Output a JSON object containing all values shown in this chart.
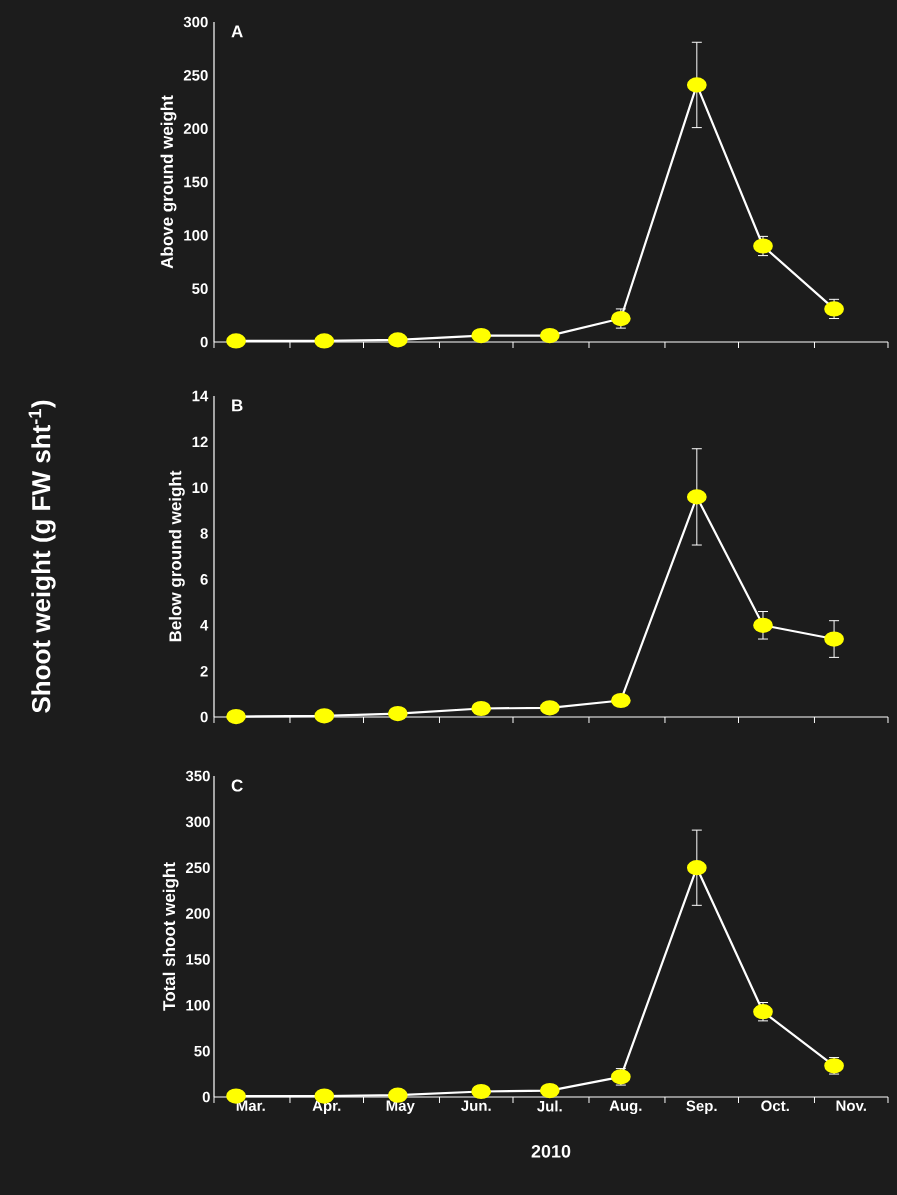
{
  "chart_data": [
    {
      "type": "line",
      "ylabel": "Above ground weight",
      "annotations": [
        "A"
      ],
      "x": [
        "2010-03-10",
        "2010-04-15",
        "2010-05-15",
        "2010-06-18",
        "2010-07-16",
        "2010-08-14",
        "2010-09-14",
        "2010-10-11",
        "2010-11-09"
      ],
      "series": [
        {
          "color": "#ffff00",
          "values": [
            1,
            1,
            2,
            6,
            6,
            22,
            241,
            90,
            31
          ],
          "errors": [
            null,
            null,
            null,
            null,
            null,
            9,
            40,
            9,
            9
          ]
        }
      ],
      "xlim": [
        "2010-03-01",
        "2010-12-01"
      ],
      "xticks": [
        {
          "value": "2010-03-01",
          "label": null
        },
        {
          "value": "2010-04-01",
          "label": null
        },
        {
          "value": "2010-05-01",
          "label": null
        },
        {
          "value": "2010-06-01",
          "label": null
        },
        {
          "value": "2010-07-01",
          "label": null
        },
        {
          "value": "2010-08-01",
          "label": null
        },
        {
          "value": "2010-09-01",
          "label": null
        },
        {
          "value": "2010-10-01",
          "label": null
        },
        {
          "value": "2010-11-01",
          "label": null
        },
        {
          "value": "2010-12-01",
          "label": null
        }
      ],
      "ylim": [
        0,
        300
      ],
      "yticks": [
        0,
        50,
        100,
        150,
        200,
        250,
        300
      ],
      "tick_labels": "y",
      "marker": "circle",
      "grid": false
    },
    {
      "type": "line",
      "ylabel": "Below ground weight",
      "annotations": [
        "B",
        "Shoot weight (g FW sht$^{-1}$)"
      ],
      "x": [
        "2010-03-10",
        "2010-04-15",
        "2010-05-15",
        "2010-06-18",
        "2010-07-16",
        "2010-08-14",
        "2010-09-14",
        "2010-10-11",
        "2010-11-09"
      ],
      "series": [
        {
          "color": "#ffff00",
          "values": [
            0.02,
            0.05,
            0.15,
            0.37,
            0.4,
            0.72,
            9.6,
            4.0,
            3.4
          ],
          "errors": [
            null,
            null,
            null,
            null,
            null,
            null,
            2.1,
            0.6,
            0.8
          ]
        }
      ],
      "xlim": [
        "2010-03-01",
        "2010-12-01"
      ],
      "xticks": [
        {
          "value": "2010-03-01",
          "label": null
        },
        {
          "value": "2010-04-01",
          "label": null
        },
        {
          "value": "2010-05-01",
          "label": null
        },
        {
          "value": "2010-06-01",
          "label": null
        },
        {
          "value": "2010-07-01",
          "label": null
        },
        {
          "value": "2010-08-01",
          "label": null
        },
        {
          "value": "2010-09-01",
          "label": null
        },
        {
          "value": "2010-10-01",
          "label": null
        },
        {
          "value": "2010-11-01",
          "label": null
        },
        {
          "value": "2010-12-01",
          "label": null
        }
      ],
      "ylim": [
        0,
        14
      ],
      "yticks": [
        0,
        2,
        4,
        6,
        8,
        10,
        12,
        14
      ],
      "tick_labels": "y",
      "marker": "circle",
      "grid": false
    },
    {
      "type": "line",
      "ylabel": "Total shoot weight",
      "xlabel": "2010",
      "annotations": [
        "C"
      ],
      "x": [
        "2010-03-10",
        "2010-04-15",
        "2010-05-15",
        "2010-06-18",
        "2010-07-16",
        "2010-08-14",
        "2010-09-14",
        "2010-10-11",
        "2010-11-09"
      ],
      "series": [
        {
          "color": "#ffff00",
          "values": [
            1,
            1,
            2,
            6,
            7,
            22,
            250,
            93,
            34
          ],
          "errors": [
            null,
            null,
            null,
            null,
            null,
            9,
            41,
            10,
            9
          ]
        }
      ],
      "xlim": [
        "2010-03-01",
        "2010-12-01"
      ],
      "xticks": [
        {
          "value": "2010-03-01",
          "label": null
        },
        {
          "value": "2010-03-16",
          "label": "Mar."
        },
        {
          "value": "2010-04-01",
          "label": null
        },
        {
          "value": "2010-04-16",
          "label": "Apr."
        },
        {
          "value": "2010-05-01",
          "label": null
        },
        {
          "value": "2010-05-16",
          "label": "May"
        },
        {
          "value": "2010-06-01",
          "label": null
        },
        {
          "value": "2010-06-16",
          "label": "Jun."
        },
        {
          "value": "2010-07-01",
          "label": null
        },
        {
          "value": "2010-07-16",
          "label": "Jul."
        },
        {
          "value": "2010-08-01",
          "label": null
        },
        {
          "value": "2010-08-16",
          "label": "Aug."
        },
        {
          "value": "2010-09-01",
          "label": null
        },
        {
          "value": "2010-09-16",
          "label": "Sep."
        },
        {
          "value": "2010-10-01",
          "label": null
        },
        {
          "value": "2010-10-16",
          "label": "Oct."
        },
        {
          "value": "2010-11-01",
          "label": null
        },
        {
          "value": "2010-11-16",
          "label": "Nov."
        },
        {
          "value": "2010-12-01",
          "label": null
        }
      ],
      "ylim": [
        0,
        350
      ],
      "yticks": [
        0,
        50,
        100,
        150,
        200,
        250,
        300,
        350
      ],
      "marker": "circle",
      "grid": false
    }
  ]
}
